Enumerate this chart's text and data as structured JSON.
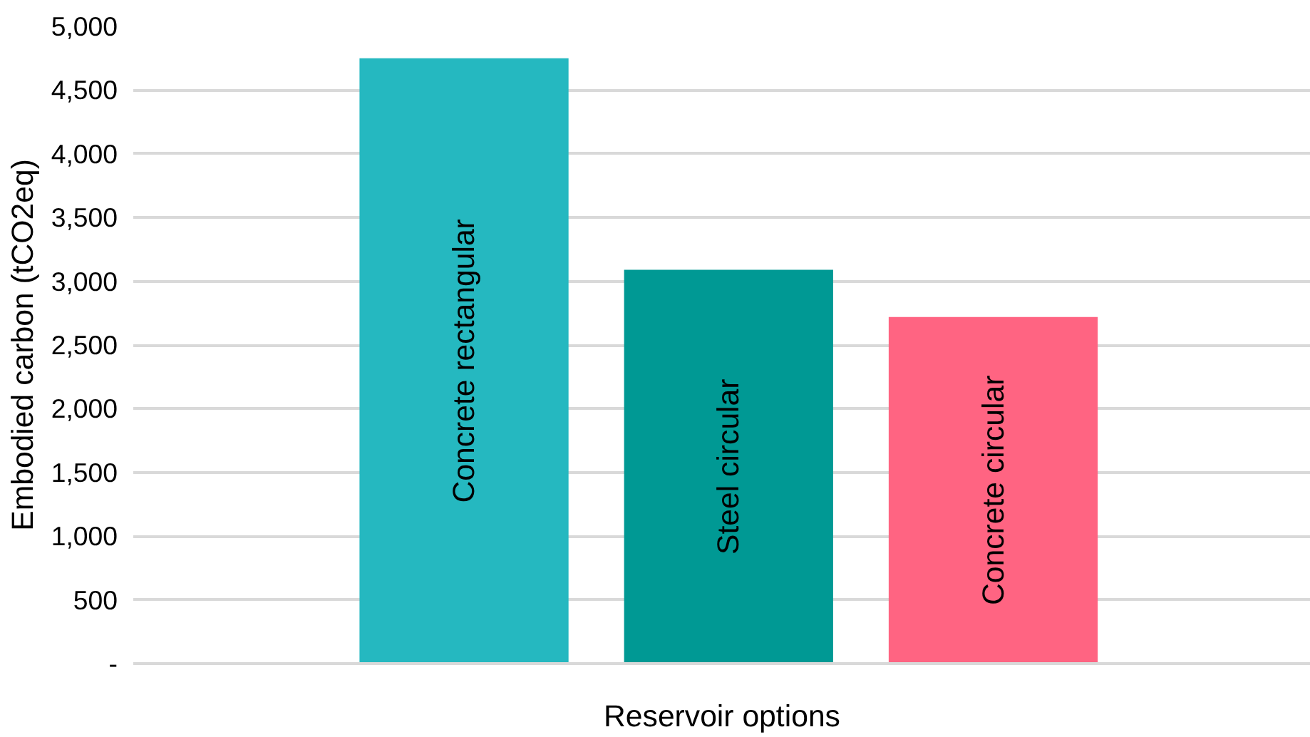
{
  "chart_data": {
    "type": "bar",
    "xlabel": "Reservoir options",
    "ylabel": "Embodied carbon (tCO2eq)",
    "categories": [
      "Concrete rectangular",
      "Steel circular",
      "Concrete circular"
    ],
    "values": [
      4750,
      3090,
      2720
    ],
    "colors": [
      "#25b8c0",
      "#009994",
      "#ff6482"
    ],
    "ylim": [
      0,
      5000
    ],
    "yticks": [
      {
        "value": 0,
        "label": "-"
      },
      {
        "value": 500,
        "label": "500"
      },
      {
        "value": 1000,
        "label": "1,000"
      },
      {
        "value": 1500,
        "label": "1,500"
      },
      {
        "value": 2000,
        "label": "2,000"
      },
      {
        "value": 2500,
        "label": "2,500"
      },
      {
        "value": 3000,
        "label": "3,000"
      },
      {
        "value": 3500,
        "label": "3,500"
      },
      {
        "value": 4000,
        "label": "4,000"
      },
      {
        "value": 4500,
        "label": "4,500"
      },
      {
        "value": 5000,
        "label": "5,000"
      }
    ],
    "grid": "y"
  }
}
